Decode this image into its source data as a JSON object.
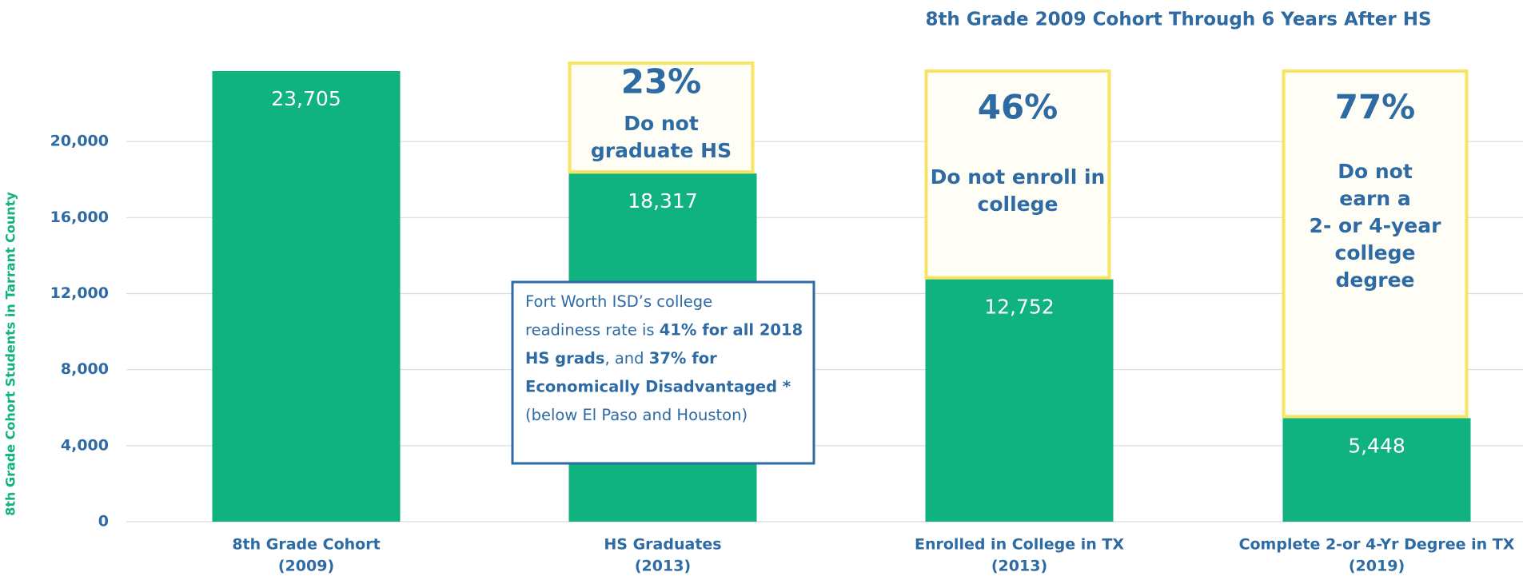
{
  "chart_data": {
    "type": "bar",
    "title": "8th Grade 2009 Cohort Through 6 Years After HS",
    "y_label": "8th Grade Cohort Students in Tarrant County",
    "categories": [
      [
        "8th Grade Cohort",
        "(2009)"
      ],
      [
        "HS Graduates",
        "(2013)"
      ],
      [
        "Enrolled in College in TX",
        "(2013)"
      ],
      [
        "Complete 2-or 4-Yr Degree in TX",
        "(2019)"
      ]
    ],
    "values": [
      23705,
      18317,
      12752,
      5448
    ],
    "value_labels": [
      "23,705",
      "18,317",
      "12,752",
      "5,448"
    ],
    "color": "#10b27f",
    "ylim": [
      0,
      24000
    ],
    "yticks": [
      0,
      {
        "value": 4000,
        "label": "4,000"
      },
      {
        "value": 8000,
        "label": "8,000"
      },
      {
        "value": 12000,
        "label": "12,000"
      },
      {
        "value": 16000,
        "label": "16,000"
      },
      {
        "value": 20000,
        "label": "20,000"
      }
    ],
    "grid": true,
    "annotations": [
      {
        "category": 1,
        "percent": "23%",
        "text": [
          "Do not",
          "graduate HS"
        ]
      },
      {
        "category": 2,
        "percent": "46%",
        "text": [
          "Do not enroll in",
          "college"
        ]
      },
      {
        "category": 3,
        "percent": "77%",
        "text": [
          "Do not",
          "earn a",
          "2- or 4-year",
          "college",
          "degree"
        ]
      }
    ],
    "note": [
      [
        {
          "text": "Fort Worth ISD’s college",
          "bold": false
        }
      ],
      [
        {
          "text": "readiness rate is ",
          "bold": false
        },
        {
          "text": "41% for all 2018",
          "bold": true
        }
      ],
      [
        {
          "text": "HS grads",
          "bold": true
        },
        {
          "text": ", and ",
          "bold": false
        },
        {
          "text": "37% for",
          "bold": true
        }
      ],
      [
        {
          "text": "Economically Disadvantaged *",
          "bold": true
        }
      ],
      [
        {
          "text": "(below El Paso and Houston)",
          "bold": false
        }
      ]
    ]
  }
}
